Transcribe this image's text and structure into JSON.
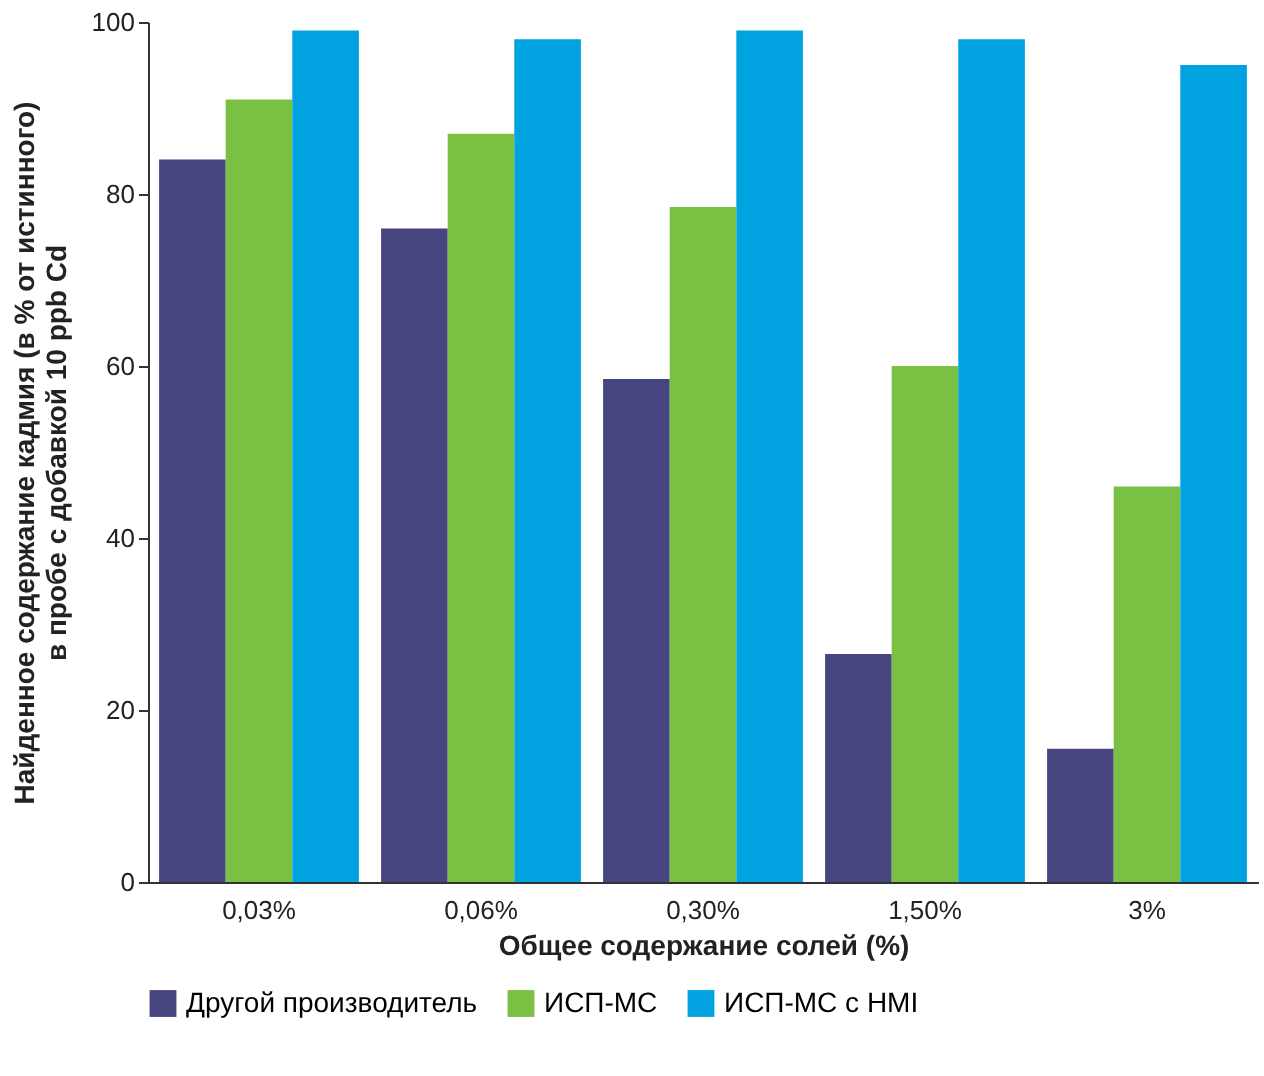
{
  "chart_data": {
    "type": "bar",
    "xlabel": "Общее содержание солей (%)",
    "ylabel": "Найденное содержание кадмия (в % от истинного)\nв пробе с добавкой 10 ppb Cd",
    "categories": [
      "0,03%",
      "0,06%",
      "0,30%",
      "1,50%",
      "3%"
    ],
    "series": [
      {
        "name": "Другой производитель",
        "color": "#46457f",
        "values": [
          84,
          76,
          58.5,
          26.5,
          15.5
        ]
      },
      {
        "name": "ИСП-МС",
        "color": "#7ac143",
        "values": [
          91,
          87,
          78.5,
          60,
          46
        ]
      },
      {
        "name": "ИСП-МС с HMI",
        "color": "#00a3e0",
        "values": [
          99,
          98,
          99,
          98,
          95
        ]
      }
    ],
    "ylim": [
      0,
      100
    ],
    "yticks": [
      0,
      20,
      40,
      60,
      80,
      100
    ],
    "grid": false,
    "legend": "bottom"
  }
}
